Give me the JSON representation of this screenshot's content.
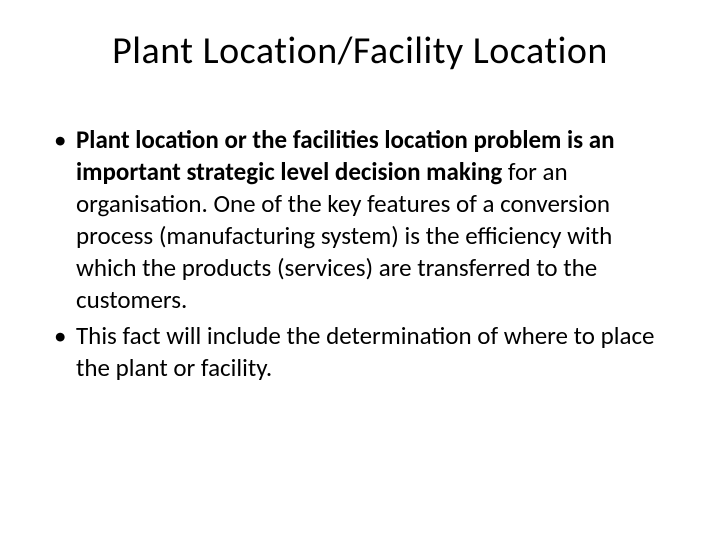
{
  "title": "Plant Location/Facility Location",
  "bullets": [
    {
      "bold_part": "Plant location or the facilities location problem is an important strategic level decision making",
      "rest": " for an organisation.  One of the key features of a conversion process (manufacturing system) is the efficiency with which the products (services) are transferred to the customers."
    },
    {
      "bold_part": "",
      "rest": "This fact will include the determination of where to place the plant or facility."
    }
  ],
  "styling": {
    "background_color": "#ffffff",
    "text_color": "#000000",
    "title_fontsize": 38,
    "body_fontsize": 25,
    "font_family": "Calibri"
  }
}
